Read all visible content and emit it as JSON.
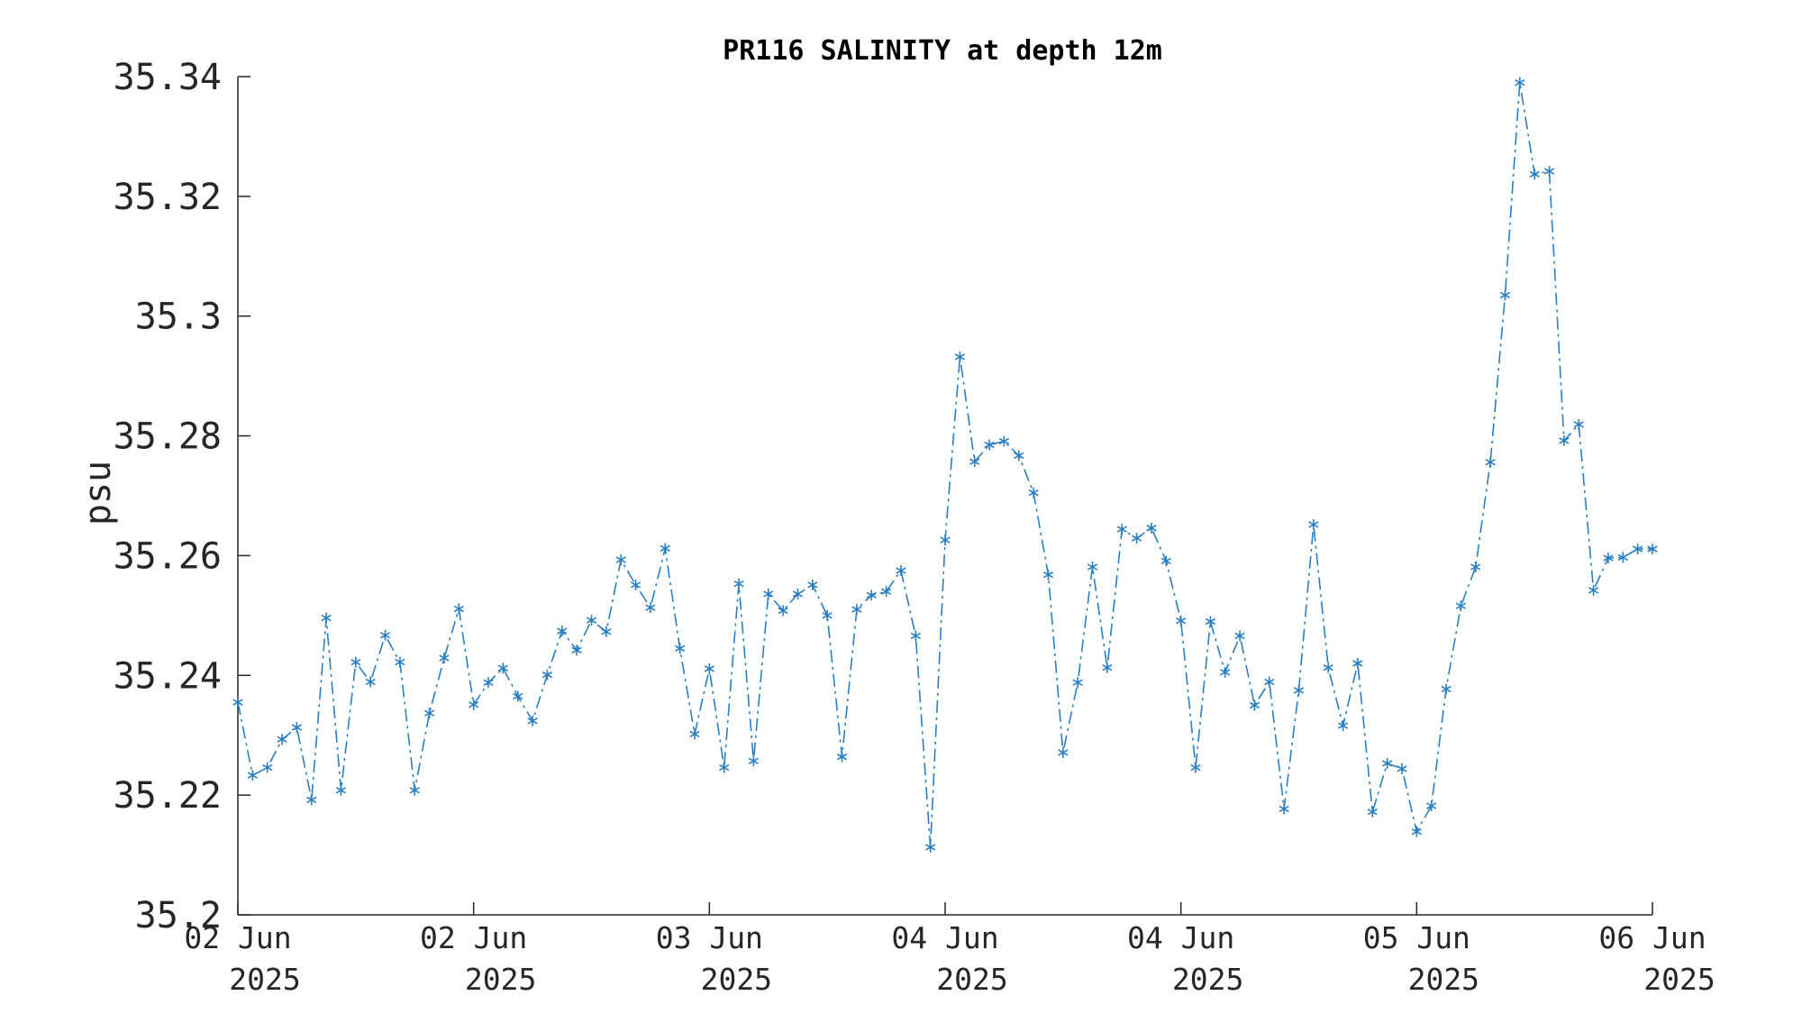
{
  "chart_data": {
    "type": "line",
    "title": "PR116 SALINITY at depth 12m",
    "xlabel": "",
    "ylabel": "psu",
    "ylim": [
      35.2,
      35.34
    ],
    "yticks": [
      "35.2",
      "35.22",
      "35.24",
      "35.26",
      "35.28",
      "35.3",
      "35.32",
      "35.34"
    ],
    "xlim": [
      "2025-06-02 00:00",
      "2025-06-06 00:00"
    ],
    "xticks": [
      {
        "line1": "02 Jun",
        "line2": "2025"
      },
      {
        "line1": "02 Jun",
        "line2": "2025"
      },
      {
        "line1": "03 Jun",
        "line2": "2025"
      },
      {
        "line1": "04 Jun",
        "line2": "2025"
      },
      {
        "line1": "04 Jun",
        "line2": "2025"
      },
      {
        "line1": "05 Jun",
        "line2": "2025"
      },
      {
        "line1": "06 Jun",
        "line2": "2025"
      }
    ],
    "marker": "asterisk",
    "line_style": "dash-dot",
    "grid": false,
    "colors": {
      "series": "#2a7fc1",
      "axis": "#262626"
    },
    "series": [
      {
        "x": [
          "2025-06-02 00:00",
          "2025-06-02 01:00",
          "2025-06-02 02:00",
          "2025-06-02 03:00",
          "2025-06-02 04:00",
          "2025-06-02 05:00",
          "2025-06-02 06:00",
          "2025-06-02 07:00",
          "2025-06-02 08:00",
          "2025-06-02 09:00",
          "2025-06-02 10:00",
          "2025-06-02 11:00",
          "2025-06-02 12:00",
          "2025-06-02 13:00",
          "2025-06-02 14:00",
          "2025-06-02 15:00",
          "2025-06-02 16:00",
          "2025-06-02 17:00",
          "2025-06-02 18:00",
          "2025-06-02 19:00",
          "2025-06-02 20:00",
          "2025-06-02 21:00",
          "2025-06-02 22:00",
          "2025-06-02 23:00",
          "2025-06-03 00:00",
          "2025-06-03 01:00",
          "2025-06-03 02:00",
          "2025-06-03 03:00",
          "2025-06-03 04:00",
          "2025-06-03 05:00",
          "2025-06-03 06:00",
          "2025-06-03 07:00",
          "2025-06-03 08:00",
          "2025-06-03 09:00",
          "2025-06-03 10:00",
          "2025-06-03 11:00",
          "2025-06-03 12:00",
          "2025-06-03 13:00",
          "2025-06-03 14:00",
          "2025-06-03 15:00",
          "2025-06-03 16:00",
          "2025-06-03 17:00",
          "2025-06-03 18:00",
          "2025-06-03 19:00",
          "2025-06-03 20:00",
          "2025-06-03 21:00",
          "2025-06-03 22:00",
          "2025-06-03 23:00",
          "2025-06-04 00:00",
          "2025-06-04 01:00",
          "2025-06-04 02:00",
          "2025-06-04 03:00",
          "2025-06-04 04:00",
          "2025-06-04 05:00",
          "2025-06-04 06:00",
          "2025-06-04 07:00",
          "2025-06-04 08:00",
          "2025-06-04 09:00",
          "2025-06-04 10:00",
          "2025-06-04 11:00",
          "2025-06-04 12:00",
          "2025-06-04 13:00",
          "2025-06-04 14:00",
          "2025-06-04 15:00",
          "2025-06-04 16:00",
          "2025-06-04 17:00",
          "2025-06-04 18:00",
          "2025-06-04 19:00",
          "2025-06-04 20:00",
          "2025-06-04 21:00",
          "2025-06-04 22:00",
          "2025-06-04 23:00",
          "2025-06-05 00:00",
          "2025-06-05 01:00",
          "2025-06-05 02:00",
          "2025-06-05 03:00",
          "2025-06-05 04:00",
          "2025-06-05 05:00",
          "2025-06-05 06:00",
          "2025-06-05 07:00",
          "2025-06-05 08:00",
          "2025-06-05 09:00",
          "2025-06-05 10:00",
          "2025-06-05 11:00",
          "2025-06-05 12:00",
          "2025-06-05 13:00",
          "2025-06-05 14:00",
          "2025-06-05 15:00",
          "2025-06-05 16:00",
          "2025-06-05 17:00",
          "2025-06-05 18:00",
          "2025-06-05 19:00",
          "2025-06-05 20:00",
          "2025-06-05 21:00",
          "2025-06-05 22:00",
          "2025-06-05 23:00",
          "2025-06-06 00:00"
        ],
        "y": [
          35.2355,
          35.2233,
          35.2246,
          35.2293,
          35.2313,
          35.2192,
          35.2496,
          35.2208,
          35.2422,
          35.2389,
          35.2467,
          35.2422,
          35.2208,
          35.2337,
          35.2429,
          35.2511,
          35.2351,
          35.2388,
          35.2412,
          35.2365,
          35.2324,
          35.2401,
          35.2474,
          35.2442,
          35.2492,
          35.2473,
          35.2593,
          35.2551,
          35.2513,
          35.2612,
          35.2445,
          35.2302,
          35.2411,
          35.2246,
          35.2553,
          35.2257,
          35.2536,
          35.2508,
          35.2536,
          35.2551,
          35.25,
          35.2264,
          35.251,
          35.2534,
          35.254,
          35.2575,
          35.2466,
          35.2113,
          35.2626,
          35.2932,
          35.2757,
          35.2785,
          35.2791,
          35.2767,
          35.2705,
          35.2568,
          35.2271,
          35.2388,
          35.2581,
          35.2413,
          35.2644,
          35.2629,
          35.2646,
          35.2591,
          35.2491,
          35.2246,
          35.249,
          35.2405,
          35.2466,
          35.235,
          35.2389,
          35.2177,
          35.2375,
          35.2652,
          35.2413,
          35.2316,
          35.242,
          35.2172,
          35.2253,
          35.2244,
          35.2139,
          35.2182,
          35.2377,
          35.2516,
          35.2581,
          35.2756,
          35.3035,
          35.339,
          35.3237,
          35.3242,
          35.2792,
          35.2819,
          35.2542,
          35.2596,
          35.2597,
          35.2611,
          35.2611
        ]
      }
    ]
  }
}
